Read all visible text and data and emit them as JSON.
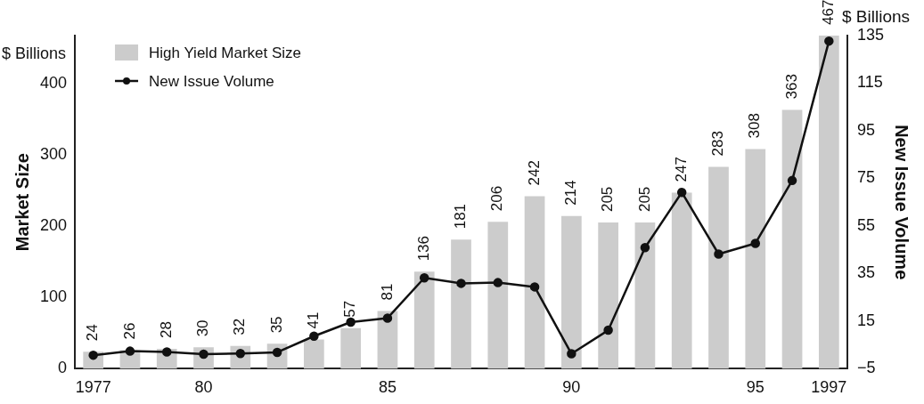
{
  "chart_data": {
    "type": "bar",
    "categories": [
      "1977",
      null,
      null,
      "80",
      null,
      null,
      null,
      null,
      "85",
      null,
      null,
      null,
      null,
      "90",
      null,
      null,
      null,
      null,
      "95",
      null,
      "1997"
    ],
    "series": [
      {
        "name": "High Yield Market Size",
        "color": "#cccccc",
        "values": [
          24,
          26,
          28,
          30,
          32,
          35,
          41,
          57,
          81,
          136,
          181,
          206,
          242,
          214,
          205,
          205,
          247,
          283,
          308,
          363,
          467
        ],
        "value_labels": [
          "24",
          "26",
          "28",
          "30",
          "32",
          "35",
          "41",
          "57",
          "81",
          "136",
          "181",
          "206",
          "242",
          "214",
          "205",
          "205",
          "247",
          "283",
          "308",
          "363",
          "467"
        ]
      },
      {
        "name": "New Issue Volume",
        "type": "line",
        "axis": "y2",
        "color": "#111111",
        "values": [
          0.7,
          2.4,
          2.1,
          1.1,
          1.4,
          1.9,
          8.7,
          14.6,
          16.3,
          33.2,
          30.9,
          31.2,
          29.4,
          1.3,
          11.2,
          45.9,
          69.1,
          43.2,
          47.7,
          74.1,
          132.7
        ]
      }
    ],
    "ylabel": "Market Size",
    "y2label": "New Issue Volume",
    "annotations": [
      "$ Billions",
      "$ Billions"
    ],
    "ylim": [
      0,
      467
    ],
    "yticks": [
      0,
      100,
      200,
      300,
      400
    ],
    "y2lim": [
      -5,
      135
    ],
    "y2ticks": [
      -5,
      15,
      35,
      55,
      75,
      95,
      115,
      135
    ],
    "marker": "circle",
    "legend": "top left",
    "grid": false
  }
}
